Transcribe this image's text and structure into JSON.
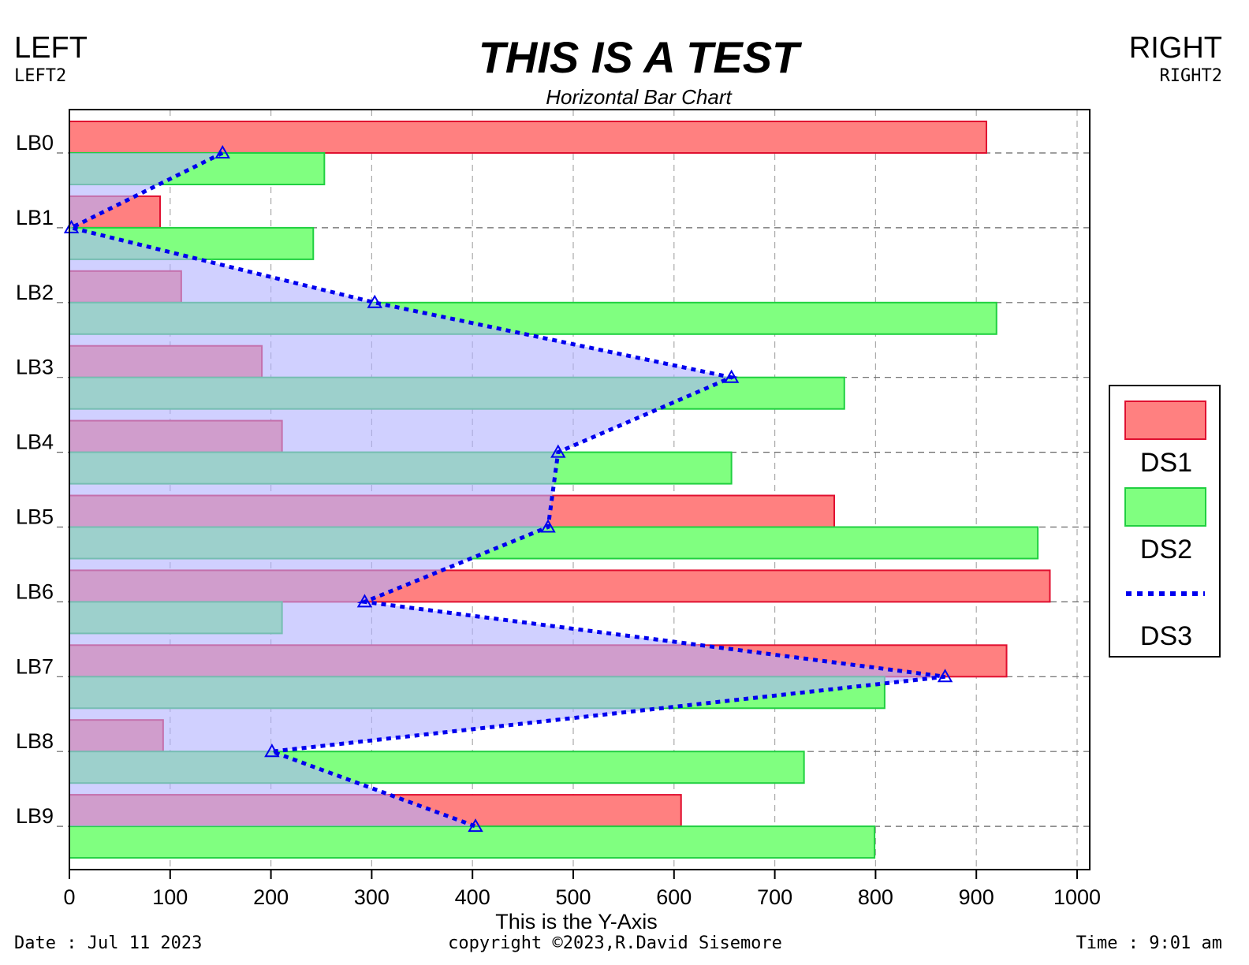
{
  "header": {
    "title": "THIS IS A TEST",
    "subtitle": "Horizontal Bar Chart",
    "left_label": "LEFT",
    "left_label2": "LEFT2",
    "right_label": "RIGHT",
    "right_label2": "RIGHT2"
  },
  "footer": {
    "date": "Date : Jul 11 2023",
    "copyright": "copyright ©2023,R.David Sisemore",
    "time": "Time : 9:01 am"
  },
  "colors": {
    "ds1_fill": "#ff8080",
    "ds1_stroke": "#e01030",
    "ds2_fill": "#80ff80",
    "ds2_stroke": "#20d040",
    "ds3_line": "#0000ee",
    "ds3_area": "#b0b0ff"
  },
  "chart_data": {
    "type": "bar",
    "orientation": "horizontal",
    "title": "THIS IS A TEST",
    "subtitle": "Horizontal Bar Chart",
    "xlabel": "This is the Y-Axis",
    "ylabel": "",
    "xlim": [
      0,
      1000
    ],
    "x_ticks": [
      "0",
      "100",
      "200",
      "300",
      "400",
      "500",
      "600",
      "700",
      "800",
      "900",
      "1000"
    ],
    "categories": [
      "LB0",
      "LB1",
      "LB2",
      "LB3",
      "LB4",
      "LB5",
      "LB6",
      "LB7",
      "LB8",
      "LB9"
    ],
    "grid": true,
    "legend_position": "right",
    "series": [
      {
        "name": "DS1",
        "type": "bar",
        "values": [
          910,
          90,
          111,
          191,
          211,
          759,
          973,
          930,
          93,
          607
        ]
      },
      {
        "name": "DS2",
        "type": "bar",
        "values": [
          253,
          242,
          920,
          769,
          657,
          961,
          211,
          809,
          729,
          799
        ]
      },
      {
        "name": "DS3",
        "type": "area-line",
        "marker": "triangle",
        "line_style": "dotted",
        "values": [
          152,
          2,
          303,
          657,
          485,
          475,
          293,
          869,
          201,
          403
        ]
      }
    ]
  }
}
